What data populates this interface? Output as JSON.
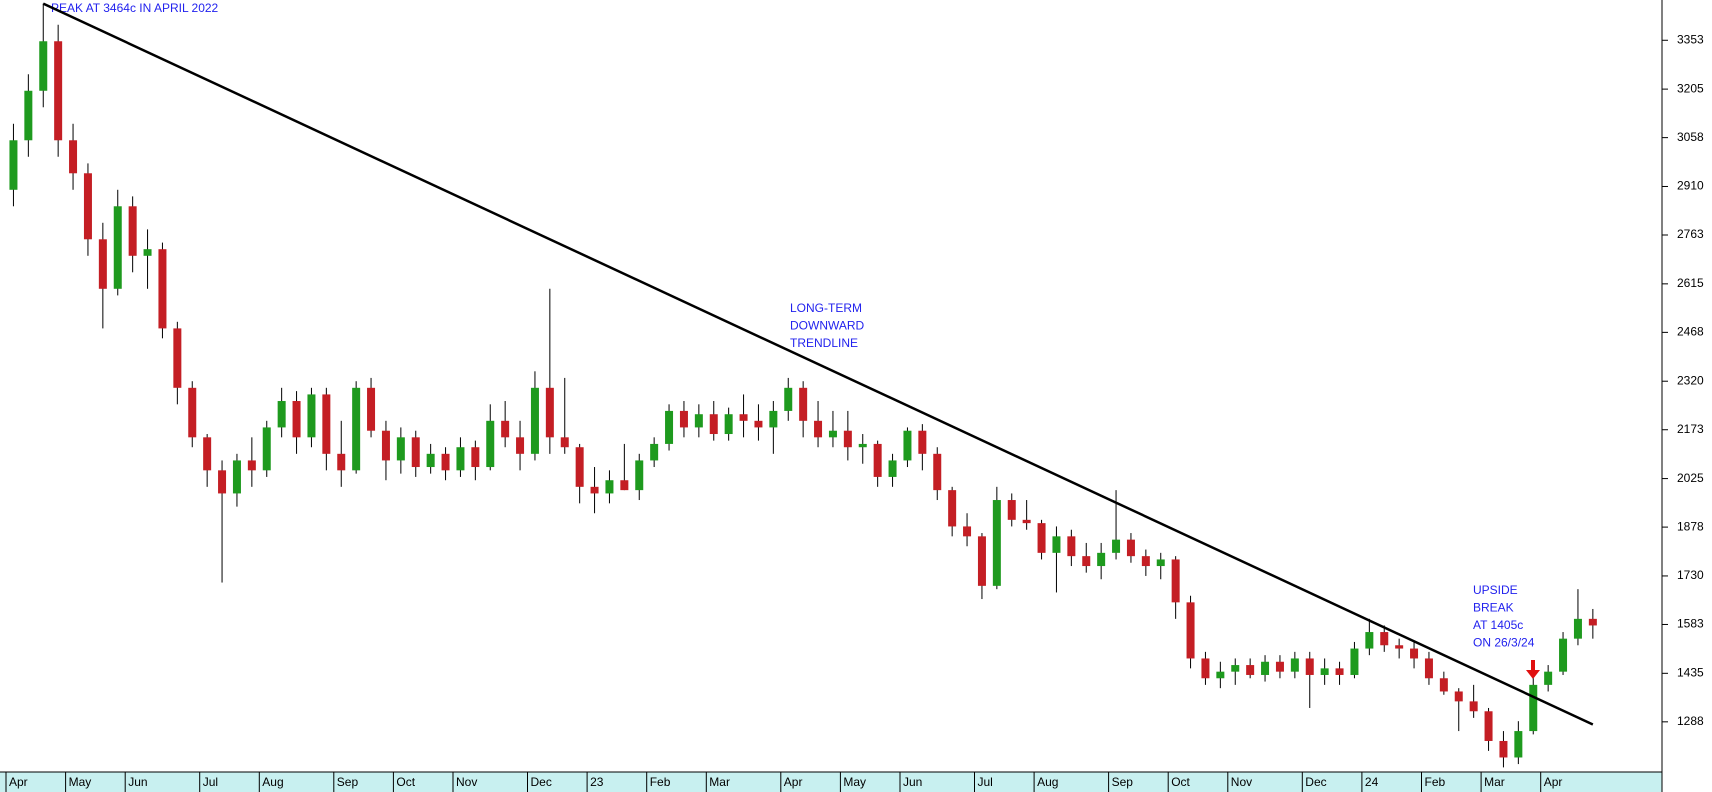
{
  "chart_data": {
    "type": "candlestick",
    "annotations": {
      "peak": "PEAK AT 3464c IN APRIL 2022",
      "trend": [
        "LONG-TERM",
        "DOWNWARD",
        "TRENDLINE"
      ],
      "breakout": [
        "UPSIDE",
        "BREAK",
        "AT 1405c",
        "ON 26/3/24"
      ]
    },
    "trendline": {
      "start": 3464,
      "end": 1280,
      "color": "#000000"
    },
    "ylim": [
      1136,
      3475
    ],
    "yticks": [
      1288,
      1435,
      1583,
      1730,
      1878,
      2025,
      2173,
      2320,
      2468,
      2615,
      2763,
      2910,
      3058,
      3205,
      3353
    ],
    "up_color": "#1e9a1e",
    "down_color": "#c41e24",
    "categories": [
      "Apr",
      null,
      null,
      null,
      "May",
      null,
      null,
      null,
      "Jun",
      null,
      null,
      null,
      null,
      "Jul",
      null,
      null,
      null,
      "Aug",
      null,
      null,
      null,
      null,
      "Sep",
      null,
      null,
      null,
      "Oct",
      null,
      null,
      null,
      "Nov",
      null,
      null,
      null,
      null,
      "Dec",
      null,
      null,
      null,
      "23",
      null,
      null,
      null,
      "Feb",
      null,
      null,
      null,
      "Mar",
      null,
      null,
      null,
      null,
      "Apr",
      null,
      null,
      null,
      "May",
      null,
      null,
      null,
      "Jun",
      null,
      null,
      null,
      null,
      "Jul",
      null,
      null,
      null,
      "Aug",
      null,
      null,
      null,
      null,
      "Sep",
      null,
      null,
      null,
      "Oct",
      null,
      null,
      null,
      "Nov",
      null,
      null,
      null,
      null,
      "Dec",
      null,
      null,
      null,
      "24",
      null,
      null,
      null,
      "Feb",
      null,
      null,
      null,
      "Mar",
      null,
      null,
      null,
      "Apr",
      null,
      null,
      null
    ],
    "open": [
      2900,
      3050,
      3200,
      3350,
      3050,
      2950,
      2750,
      2600,
      2850,
      2700,
      2720,
      2480,
      2300,
      2150,
      2050,
      1980,
      2080,
      2050,
      2180,
      2260,
      2150,
      2280,
      2100,
      2050,
      2300,
      2170,
      2080,
      2150,
      2060,
      2100,
      2050,
      2120,
      2060,
      2200,
      2150,
      2100,
      2300,
      2150,
      2120,
      2000,
      1980,
      2020,
      1990,
      2080,
      2130,
      2230,
      2180,
      2220,
      2160,
      2220,
      2200,
      2180,
      2230,
      2300,
      2200,
      2150,
      2170,
      2120,
      2130,
      2030,
      2080,
      2170,
      2100,
      1990,
      1880,
      1850,
      1700,
      1960,
      1900,
      1890,
      1800,
      1850,
      1790,
      1760,
      1800,
      1840,
      1790,
      1760,
      1780,
      1650,
      1480,
      1420,
      1440,
      1460,
      1430,
      1470,
      1440,
      1480,
      1430,
      1450,
      1430,
      1510,
      1560,
      1520,
      1510,
      1480,
      1420,
      1380,
      1350,
      1320,
      1230,
      1180,
      1260,
      1400,
      1440,
      1540,
      1600
    ],
    "high": [
      3100,
      3250,
      3464,
      3400,
      3100,
      2980,
      2800,
      2900,
      2880,
      2780,
      2740,
      2500,
      2320,
      2160,
      2080,
      2100,
      2150,
      2200,
      2300,
      2290,
      2300,
      2300,
      2200,
      2320,
      2330,
      2200,
      2180,
      2170,
      2130,
      2120,
      2150,
      2140,
      2250,
      2260,
      2200,
      2350,
      2600,
      2330,
      2130,
      2060,
      2050,
      2130,
      2100,
      2150,
      2250,
      2260,
      2250,
      2260,
      2240,
      2280,
      2250,
      2260,
      2330,
      2320,
      2260,
      2230,
      2230,
      2160,
      2140,
      2100,
      2180,
      2190,
      2120,
      2000,
      1920,
      1860,
      2000,
      1980,
      1960,
      1900,
      1880,
      1870,
      1830,
      1830,
      1990,
      1860,
      1810,
      1800,
      1790,
      1670,
      1500,
      1470,
      1480,
      1480,
      1490,
      1490,
      1500,
      1500,
      1480,
      1470,
      1530,
      1600,
      1580,
      1540,
      1530,
      1500,
      1440,
      1390,
      1400,
      1330,
      1260,
      1290,
      1420,
      1460,
      1560,
      1690,
      1630
    ],
    "low": [
      2850,
      3000,
      3150,
      3000,
      2900,
      2700,
      2480,
      2580,
      2650,
      2600,
      2450,
      2250,
      2120,
      2000,
      1710,
      1940,
      2000,
      2030,
      2150,
      2100,
      2120,
      2050,
      2000,
      2040,
      2150,
      2020,
      2040,
      2030,
      2040,
      2020,
      2030,
      2020,
      2050,
      2120,
      2050,
      2080,
      2100,
      2100,
      1950,
      1920,
      1950,
      1990,
      1960,
      2060,
      2110,
      2150,
      2150,
      2140,
      2140,
      2150,
      2140,
      2100,
      2200,
      2150,
      2120,
      2120,
      2080,
      2070,
      2000,
      2000,
      2060,
      2050,
      1960,
      1850,
      1820,
      1660,
      1690,
      1880,
      1870,
      1780,
      1680,
      1760,
      1740,
      1720,
      1780,
      1770,
      1730,
      1720,
      1600,
      1450,
      1400,
      1390,
      1400,
      1420,
      1410,
      1420,
      1420,
      1330,
      1400,
      1400,
      1420,
      1490,
      1500,
      1480,
      1450,
      1400,
      1370,
      1260,
      1300,
      1200,
      1150,
      1160,
      1250,
      1380,
      1430,
      1520,
      1540
    ],
    "close": [
      3050,
      3200,
      3350,
      3050,
      2950,
      2750,
      2600,
      2850,
      2700,
      2720,
      2480,
      2300,
      2150,
      2050,
      1980,
      2080,
      2050,
      2180,
      2260,
      2150,
      2280,
      2100,
      2050,
      2300,
      2170,
      2080,
      2150,
      2060,
      2100,
      2050,
      2120,
      2060,
      2200,
      2150,
      2100,
      2300,
      2150,
      2120,
      2000,
      1980,
      2020,
      1990,
      2080,
      2130,
      2230,
      2180,
      2220,
      2160,
      2220,
      2200,
      2180,
      2230,
      2300,
      2200,
      2150,
      2170,
      2120,
      2130,
      2030,
      2080,
      2170,
      2100,
      1990,
      1880,
      1850,
      1700,
      1960,
      1900,
      1890,
      1800,
      1850,
      1790,
      1760,
      1800,
      1840,
      1790,
      1760,
      1780,
      1650,
      1480,
      1420,
      1440,
      1460,
      1430,
      1470,
      1440,
      1480,
      1430,
      1450,
      1430,
      1510,
      1560,
      1520,
      1510,
      1480,
      1420,
      1380,
      1350,
      1320,
      1230,
      1180,
      1260,
      1400,
      1440,
      1540,
      1600,
      1580
    ]
  }
}
